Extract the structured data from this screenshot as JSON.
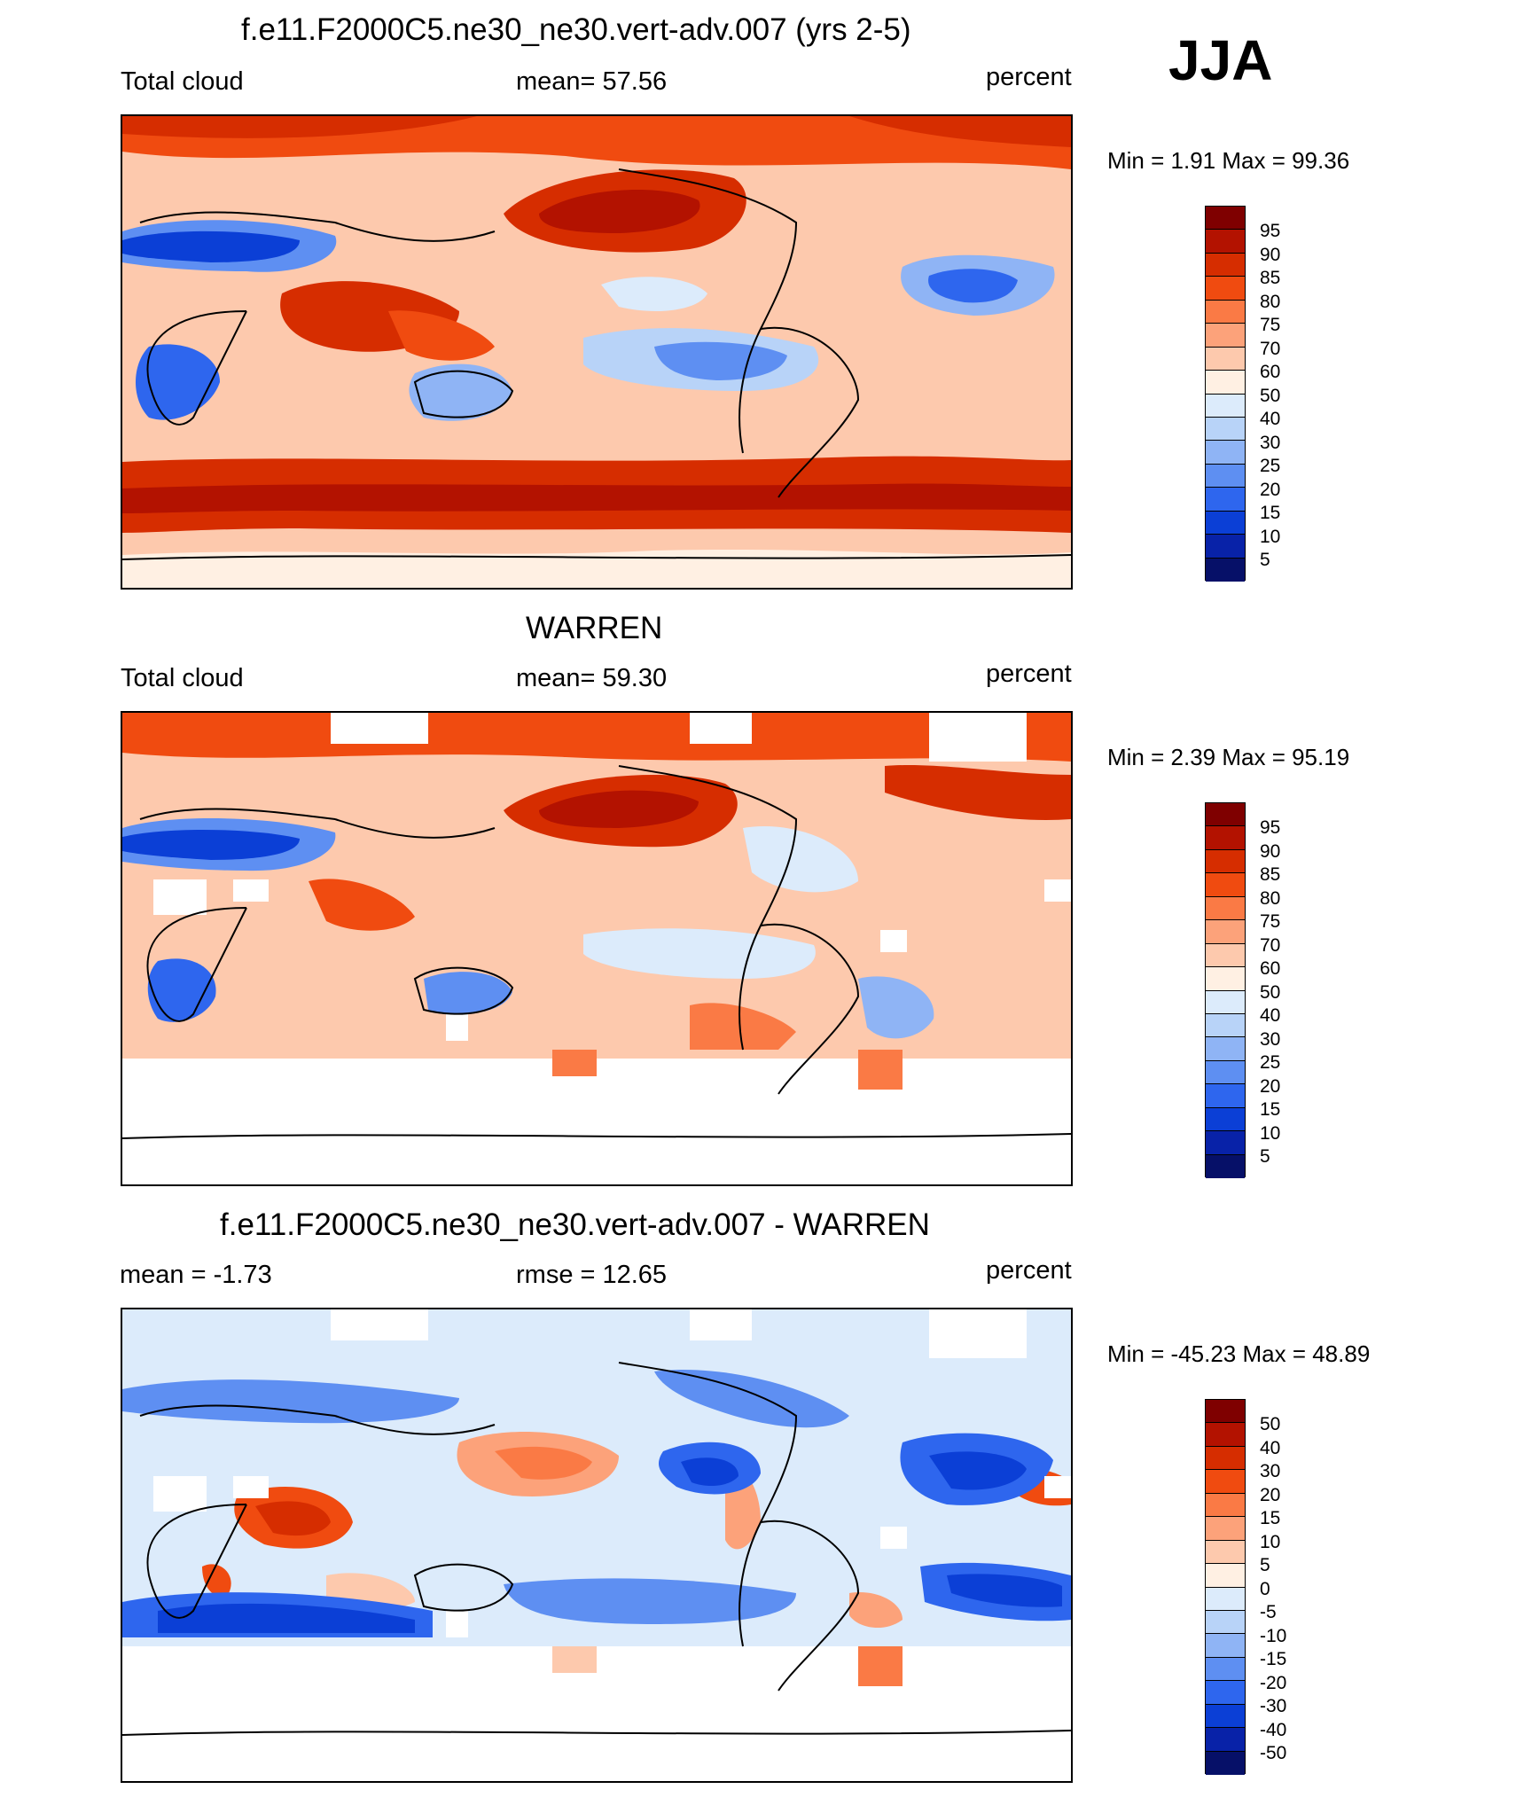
{
  "season": "JJA",
  "panels": [
    {
      "title": "f.e11.F2000C5.ne30_ne30.vert-adv.007 (yrs 2-5)",
      "left_label": "Total cloud",
      "center_label": "mean=  57.56",
      "units": "percent",
      "minmax": "Min =    1.91 Max =  99.36",
      "colorbar": {
        "labels": [
          "95",
          "90",
          "85",
          "80",
          "75",
          "70",
          "60",
          "50",
          "40",
          "30",
          "25",
          "20",
          "15",
          "10",
          "5"
        ],
        "colors": [
          "#7f0000",
          "#b31200",
          "#d62d00",
          "#f04b10",
          "#fa7a45",
          "#fca27a",
          "#fdc9ad",
          "#fff0e3",
          "#dcebfb",
          "#b8d3f8",
          "#8fb4f5",
          "#5e8ff2",
          "#2e66ee",
          "#0b3fd6",
          "#0822a8",
          "#061068"
        ]
      }
    },
    {
      "title": "WARREN",
      "left_label": "Total cloud",
      "center_label": "mean=  59.30",
      "units": "percent",
      "minmax": "Min =    2.39 Max =  95.19",
      "colorbar": {
        "labels": [
          "95",
          "90",
          "85",
          "80",
          "75",
          "70",
          "60",
          "50",
          "40",
          "30",
          "25",
          "20",
          "15",
          "10",
          "5"
        ],
        "colors": [
          "#7f0000",
          "#b31200",
          "#d62d00",
          "#f04b10",
          "#fa7a45",
          "#fca27a",
          "#fdc9ad",
          "#fff0e3",
          "#dcebfb",
          "#b8d3f8",
          "#8fb4f5",
          "#5e8ff2",
          "#2e66ee",
          "#0b3fd6",
          "#0822a8",
          "#061068"
        ]
      }
    },
    {
      "title": "f.e11.F2000C5.ne30_ne30.vert-adv.007 - WARREN",
      "left_label": "mean =  -1.73",
      "center_label": "rmse =  12.65",
      "units": "percent",
      "minmax": "Min = -45.23 Max =  48.89",
      "colorbar": {
        "labels": [
          "50",
          "40",
          "30",
          "20",
          "15",
          "10",
          "5",
          "0",
          "-5",
          "-10",
          "-15",
          "-20",
          "-30",
          "-40",
          "-50"
        ],
        "colors": [
          "#7f0000",
          "#b31200",
          "#d62d00",
          "#f04b10",
          "#fa7a45",
          "#fca27a",
          "#fdc9ad",
          "#fff0e3",
          "#dcebfb",
          "#b8d3f8",
          "#8fb4f5",
          "#5e8ff2",
          "#2e66ee",
          "#0b3fd6",
          "#0822a8",
          "#061068"
        ]
      }
    }
  ]
}
